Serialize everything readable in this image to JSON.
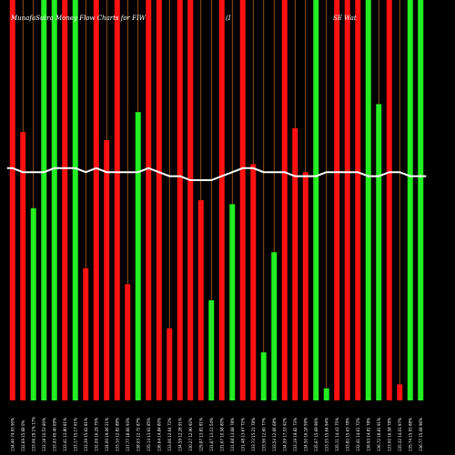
{
  "chart_data": {
    "type": "bar",
    "title": "MunafaSutra Money Flow  Charts for FIW",
    "subtitle_left": "(I",
    "subtitle_right": "SE Wat",
    "ylim": [
      0,
      100
    ],
    "grid": false,
    "colors": {
      "background": "#000000",
      "up": "#22ee22",
      "down": "#ff1111",
      "grid_line": "#b5651d",
      "line": "#ffffff"
    },
    "categories": [
      "134.40 74.93 90%",
      "132.69 15.68 0%",
      "133.06 29.1% 17%",
      "133.18 10.53 80%",
      "133.43 45.40 69%",
      "133.41 13.80 81%",
      "133.17 15.17 61%",
      "133.39 15.62 81%",
      "132.09 16.29 75%",
      "134.00 19.06 21%",
      "133.10 12.82 89%",
      "137.77 18.66 93%",
      "138.03 12.72 87%",
      "135.14 13.61 85%",
      "136.64 14.84 80%",
      "133.06 12.64 72%",
      "134.59 12.28 91%",
      "130.27 12.90 92%",
      "129.87 13.81 81%",
      "131.67 13.11 54%",
      "131.67 10.58 80%",
      "131.68 13.68 78%",
      "131.48 13.67 72%",
      "133.72 15.21 78%",
      "133.56 12.60 77%",
      "133.54 12.66 68%",
      "134.09 17.53 92%",
      "133.19 19.82 73%",
      "134.50 16.18 59%",
      "135.67 15.69 96%",
      "133.35 15.64 94%",
      "135.11 14.43 75%",
      "133.82 15.63 78%",
      "132.41 14.61 72%",
      "136.93 14.81 78%",
      "136.72 18.81 91%",
      "133.00 16.58 78%",
      "135.32 14.01 97%",
      "135.74 15.93 88%",
      "136.77 15.08 96%"
    ],
    "values": [
      100,
      67,
      48,
      100,
      100,
      100,
      100,
      33,
      100,
      65,
      100,
      29,
      72,
      100,
      100,
      18,
      100,
      100,
      50,
      25,
      100,
      49,
      100,
      59,
      12,
      37,
      100,
      68,
      57,
      100,
      3,
      100,
      100,
      100,
      100,
      74,
      100,
      4,
      100,
      100
    ],
    "directions": [
      "down",
      "down",
      "up",
      "up",
      "up",
      "down",
      "up",
      "down",
      "down",
      "down",
      "down",
      "down",
      "up",
      "down",
      "down",
      "down",
      "down",
      "down",
      "down",
      "up",
      "down",
      "up",
      "down",
      "down",
      "up",
      "up",
      "down",
      "down",
      "down",
      "up",
      "up",
      "down",
      "down",
      "down",
      "up",
      "up",
      "down",
      "down",
      "up",
      "up"
    ],
    "line_values": [
      58,
      57,
      57,
      57,
      58,
      58,
      58,
      57,
      58,
      57,
      57,
      57,
      57,
      58,
      57,
      56,
      56,
      55,
      55,
      55,
      56,
      57,
      58,
      58,
      57,
      57,
      57,
      56,
      56,
      56,
      57,
      57,
      57,
      57,
      56,
      56,
      57,
      57,
      56,
      56
    ]
  }
}
